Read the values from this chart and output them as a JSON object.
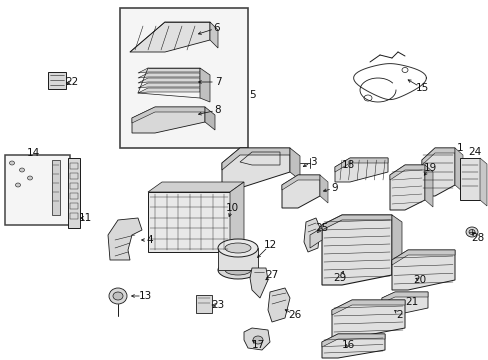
{
  "bg_color": "#ffffff",
  "fig_width": 4.89,
  "fig_height": 3.6,
  "dpi": 100,
  "lc": "#1a1a1a",
  "tc": "#111111",
  "fs": 7.5
}
